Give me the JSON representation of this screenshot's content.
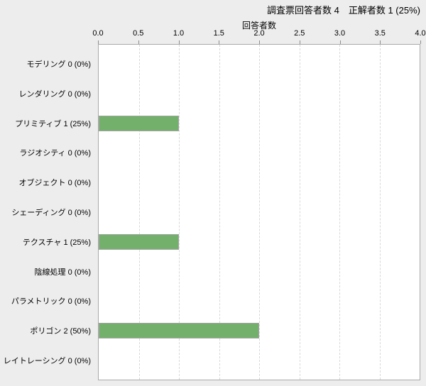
{
  "header": {
    "title": "調査票回答者数 4　正解者数 1 (25%)",
    "respondent_count": 4,
    "correct_count": 1,
    "correct_rate": "25%"
  },
  "chart_data": {
    "type": "bar",
    "orientation": "horizontal",
    "title": "調査票回答者数 4　正解者数 1 (25%)",
    "xlabel": "回答者数",
    "ylabel": "",
    "xlim": [
      0,
      4
    ],
    "x_ticks": [
      "0.0",
      "0.5",
      "1.0",
      "1.5",
      "2.0",
      "2.5",
      "3.0",
      "3.5",
      "4.0"
    ],
    "grid": "vertical-dashed-0.5-intervals",
    "legend": "none",
    "categories": [
      "モデリング",
      "レンダリング",
      "プリミティブ",
      "ラジオシティ",
      "オブジェクト",
      "シェーディング",
      "テクスチャ",
      "陰線処理",
      "パラメトリック",
      "ポリゴン",
      "レイトレーシング"
    ],
    "values": [
      0,
      0,
      1,
      0,
      0,
      0,
      1,
      0,
      0,
      2,
      0
    ],
    "percent_labels": [
      "0%",
      "0%",
      "25%",
      "0%",
      "0%",
      "0%",
      "25%",
      "0%",
      "0%",
      "50%",
      "0%"
    ],
    "row_labels": [
      "モデリング 0 (0%)",
      "レンダリング 0 (0%)",
      "プリミティブ 1 (25%)",
      "ラジオシティ 0 (0%)",
      "オブジェクト 0 (0%)",
      "シェーディング 0 (0%)",
      "テクスチャ 1 (25%)",
      "陰線処理 0 (0%)",
      "パラメトリック 0 (0%)",
      "ポリゴン 2 (50%)",
      "レイトレーシング 0 (0%)"
    ],
    "bar_color": "#73b06b"
  },
  "colors": {
    "background": "#ededed",
    "plot_background": "#ffffff",
    "bar": "#73b06b",
    "bar_border": "#a3a3a3",
    "plot_border": "#a9a9a9",
    "grid": "#d8d8d8",
    "tick": "#8c8c8c",
    "text": "#000000"
  }
}
